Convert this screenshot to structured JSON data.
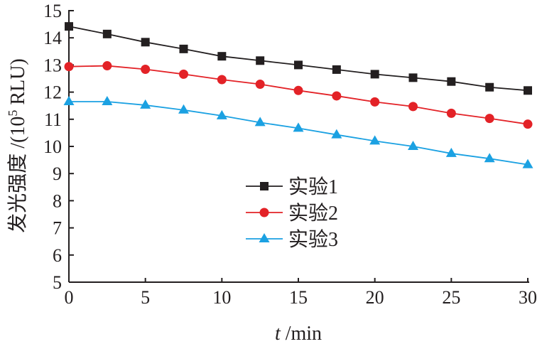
{
  "chart_data": {
    "type": "line",
    "title": "",
    "xlabel_var": "t",
    "xlabel_unit": " /min",
    "ylabel_main": "发光强度 /(10",
    "ylabel_sup": "5",
    "ylabel_end": " RLU)",
    "xlim": [
      0,
      30
    ],
    "ylim": [
      5,
      15
    ],
    "xticks": [
      "0",
      "5",
      "10",
      "15",
      "20",
      "25",
      "30"
    ],
    "yticks": [
      "5",
      "6",
      "7",
      "8",
      "9",
      "10",
      "11",
      "12",
      "13",
      "14",
      "15"
    ],
    "grid": false,
    "legend_position": "center-left",
    "x": [
      0,
      2.5,
      5,
      7.5,
      10,
      12.5,
      15,
      17.5,
      20,
      22.5,
      25,
      27.5,
      30
    ],
    "series": [
      {
        "name": "实验1",
        "color": "#231f20",
        "marker": "square",
        "values": [
          14.42,
          14.14,
          13.84,
          13.59,
          13.32,
          13.16,
          13.0,
          12.83,
          12.66,
          12.53,
          12.39,
          12.18,
          12.06
        ]
      },
      {
        "name": "实验2",
        "color": "#e32227",
        "marker": "circle",
        "values": [
          12.94,
          12.97,
          12.84,
          12.66,
          12.46,
          12.29,
          12.06,
          11.86,
          11.64,
          11.47,
          11.22,
          11.03,
          10.82
        ]
      },
      {
        "name": "实验3",
        "color": "#1ba1e2",
        "marker": "triangle",
        "values": [
          11.65,
          11.65,
          11.52,
          11.34,
          11.13,
          10.88,
          10.67,
          10.43,
          10.2,
          10.0,
          9.74,
          9.55,
          9.33
        ]
      }
    ]
  }
}
